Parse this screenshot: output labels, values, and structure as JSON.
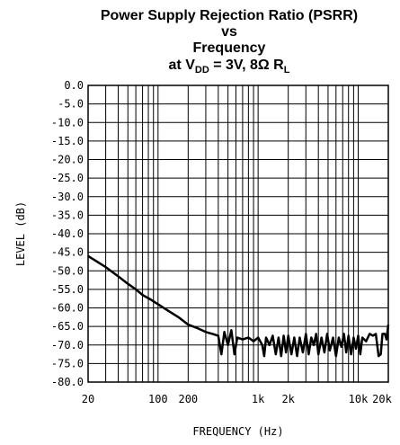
{
  "chart_data": {
    "type": "line",
    "title_lines": [
      "Power Supply Rejection Ratio (PSRR)",
      "vs",
      "Frequency"
    ],
    "title_condition": {
      "prefix": "at V",
      "sub1": "DD",
      "middle": " = 3V, 8Ω R",
      "sub2": "L"
    },
    "xlabel": "FREQUENCY (Hz)",
    "ylabel": "LEVEL (dB)",
    "x_scale": "log",
    "xlim": [
      20,
      20000
    ],
    "ylim": [
      -80,
      0
    ],
    "grid": true,
    "x_ticks": [
      {
        "value": 20,
        "label": "20"
      },
      {
        "value": 100,
        "label": "100"
      },
      {
        "value": 200,
        "label": "200"
      },
      {
        "value": 1000,
        "label": "1k"
      },
      {
        "value": 2000,
        "label": "2k"
      },
      {
        "value": 10000,
        "label": "10k"
      },
      {
        "value": 20000,
        "label": "20k"
      }
    ],
    "y_ticks": [
      {
        "value": 0,
        "label": "0.0"
      },
      {
        "value": -5,
        "label": "-5.0"
      },
      {
        "value": -10,
        "label": "-10.0"
      },
      {
        "value": -15,
        "label": "-15.0"
      },
      {
        "value": -20,
        "label": "-20.0"
      },
      {
        "value": -25,
        "label": "-25.0"
      },
      {
        "value": -30,
        "label": "-30.0"
      },
      {
        "value": -35,
        "label": "-35.0"
      },
      {
        "value": -40,
        "label": "-40.0"
      },
      {
        "value": -45,
        "label": "-45.0"
      },
      {
        "value": -50,
        "label": "-50.0"
      },
      {
        "value": -55,
        "label": "-55.0"
      },
      {
        "value": -60,
        "label": "-60.0"
      },
      {
        "value": -65,
        "label": "-65.0"
      },
      {
        "value": -70,
        "label": "-70.0"
      },
      {
        "value": -75,
        "label": "-75.0"
      },
      {
        "value": -80,
        "label": "-80.0"
      }
    ],
    "series": [
      {
        "color": "#000000",
        "points": [
          [
            20,
            -46
          ],
          [
            30,
            -49
          ],
          [
            40,
            -51.5
          ],
          [
            50,
            -53.5
          ],
          [
            60,
            -55
          ],
          [
            70,
            -56.5
          ],
          [
            85,
            -57.8
          ],
          [
            100,
            -59
          ],
          [
            130,
            -61
          ],
          [
            160,
            -62.5
          ],
          [
            200,
            -64.5
          ],
          [
            250,
            -65.5
          ],
          [
            300,
            -66.5
          ],
          [
            350,
            -67
          ],
          [
            400,
            -67.5
          ],
          [
            430,
            -72.5
          ],
          [
            460,
            -66.5
          ],
          [
            500,
            -70
          ],
          [
            540,
            -66
          ],
          [
            580,
            -72.5
          ],
          [
            620,
            -68
          ],
          [
            700,
            -68.5
          ],
          [
            800,
            -68
          ],
          [
            900,
            -69
          ],
          [
            1000,
            -68
          ],
          [
            1100,
            -70
          ],
          [
            1150,
            -73
          ],
          [
            1200,
            -68
          ],
          [
            1300,
            -70
          ],
          [
            1400,
            -67.5
          ],
          [
            1500,
            -72.5
          ],
          [
            1600,
            -68
          ],
          [
            1700,
            -73
          ],
          [
            1800,
            -67.5
          ],
          [
            1900,
            -72
          ],
          [
            2000,
            -67.5
          ],
          [
            2150,
            -72.5
          ],
          [
            2300,
            -68
          ],
          [
            2450,
            -73
          ],
          [
            2600,
            -68
          ],
          [
            2800,
            -72
          ],
          [
            3000,
            -67
          ],
          [
            3200,
            -72.5
          ],
          [
            3400,
            -68
          ],
          [
            3600,
            -70
          ],
          [
            3800,
            -67
          ],
          [
            4000,
            -72.5
          ],
          [
            4300,
            -68
          ],
          [
            4600,
            -72
          ],
          [
            4900,
            -67
          ],
          [
            5200,
            -71.5
          ],
          [
            5600,
            -68
          ],
          [
            6000,
            -73
          ],
          [
            6400,
            -68
          ],
          [
            6800,
            -70.5
          ],
          [
            7200,
            -67
          ],
          [
            7600,
            -72
          ],
          [
            8000,
            -67.5
          ],
          [
            8500,
            -72.5
          ],
          [
            9000,
            -68
          ],
          [
            9500,
            -71
          ],
          [
            10000,
            -67.5
          ],
          [
            10500,
            -72.5
          ],
          [
            11000,
            -68
          ],
          [
            12000,
            -69
          ],
          [
            13000,
            -67
          ],
          [
            14000,
            -67.5
          ],
          [
            15000,
            -67
          ],
          [
            16000,
            -73
          ],
          [
            16800,
            -72.5
          ],
          [
            17500,
            -67
          ],
          [
            18500,
            -67
          ],
          [
            19200,
            -68.5
          ],
          [
            20000,
            -64.5
          ]
        ]
      }
    ]
  }
}
